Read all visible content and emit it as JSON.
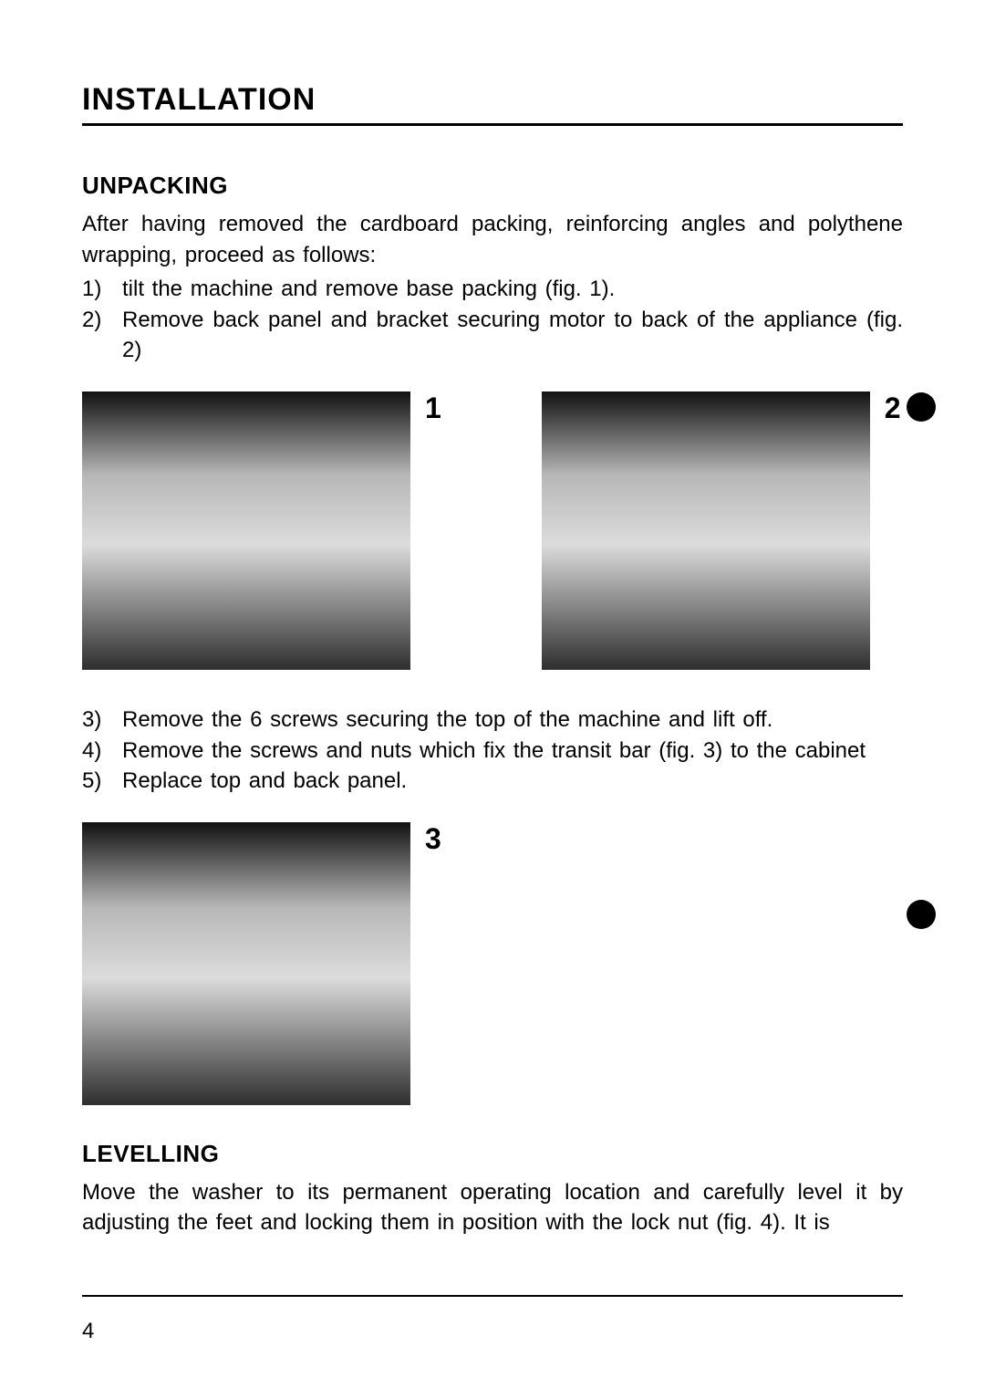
{
  "title": "INSTALLATION",
  "section1": {
    "heading": "UNPACKING",
    "intro": "After having removed the cardboard packing, reinforcing angles and polythene wrapping, proceed as follows:",
    "stepsA": [
      {
        "n": "1)",
        "t": "tilt the machine and remove base packing (fig. 1)."
      },
      {
        "n": "2)",
        "t": "Remove back panel and bracket securing motor to back of the appliance (fig. 2)"
      }
    ],
    "stepsB": [
      {
        "n": "3)",
        "t": "Remove the 6 screws securing the top of the machine and lift off."
      },
      {
        "n": "4)",
        "t": "Remove the screws and nuts which fix the transit bar (fig. 3) to the cabinet"
      },
      {
        "n": "5)",
        "t": "Replace top and back panel."
      }
    ]
  },
  "figs": {
    "f1": "1",
    "f2": "2",
    "f3": "3"
  },
  "section2": {
    "heading": "LEVELLING",
    "body": "Move the washer to its permanent operating location and carefully level it by adjusting the feet and locking them in position with the lock nut (fig. 4). It is"
  },
  "pageNumber": "4",
  "colors": {
    "text": "#000000",
    "bg": "#ffffff"
  },
  "typography": {
    "body_fontsize": 24,
    "title_fontsize": 34,
    "subhead_fontsize": 26,
    "fignum_fontsize": 32
  }
}
